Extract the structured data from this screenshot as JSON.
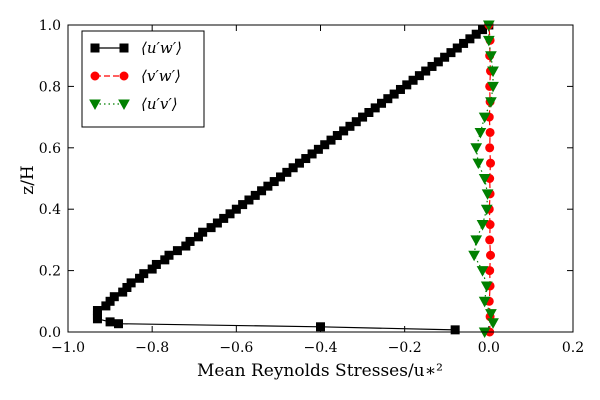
{
  "chart_data": {
    "type": "line",
    "xlabel": "Mean Reynolds Stresses/u∗²",
    "ylabel": "z/H",
    "xlim": [
      -1.0,
      0.2
    ],
    "ylim": [
      0.0,
      1.0
    ],
    "xticks": [
      "−1.0",
      "−0.8",
      "−0.6",
      "−0.4",
      "−0.2",
      "0.0",
      "0.2"
    ],
    "yticks": [
      "0.0",
      "0.2",
      "0.4",
      "0.6",
      "0.8",
      "1.0"
    ],
    "grid": false,
    "legend_position": "top-left",
    "series": [
      {
        "name": "⟨u′w′⟩",
        "color": "#000000",
        "marker": "square",
        "linestyle": "solid",
        "points": [
          [
            -0.08,
            0.007
          ],
          [
            -0.4,
            0.017
          ],
          [
            -0.88,
            0.027
          ],
          [
            -0.9,
            0.033
          ],
          [
            -0.93,
            0.043
          ],
          [
            -0.93,
            0.055
          ],
          [
            -0.93,
            0.07
          ],
          [
            -0.91,
            0.085
          ],
          [
            -0.9,
            0.1
          ],
          [
            -0.89,
            0.115
          ],
          [
            -0.87,
            0.13
          ],
          [
            -0.86,
            0.145
          ],
          [
            -0.85,
            0.16
          ],
          [
            -0.83,
            0.175
          ],
          [
            -0.82,
            0.19
          ],
          [
            -0.8,
            0.205
          ],
          [
            -0.79,
            0.22
          ],
          [
            -0.77,
            0.235
          ],
          [
            -0.76,
            0.25
          ],
          [
            -0.74,
            0.265
          ],
          [
            -0.72,
            0.28
          ],
          [
            -0.71,
            0.295
          ],
          [
            -0.69,
            0.31
          ],
          [
            -0.68,
            0.325
          ],
          [
            -0.66,
            0.34
          ],
          [
            -0.645,
            0.355
          ],
          [
            -0.63,
            0.37
          ],
          [
            -0.615,
            0.385
          ],
          [
            -0.6,
            0.4
          ],
          [
            -0.585,
            0.415
          ],
          [
            -0.57,
            0.43
          ],
          [
            -0.555,
            0.445
          ],
          [
            -0.54,
            0.46
          ],
          [
            -0.525,
            0.475
          ],
          [
            -0.51,
            0.49
          ],
          [
            -0.495,
            0.505
          ],
          [
            -0.48,
            0.52
          ],
          [
            -0.465,
            0.535
          ],
          [
            -0.45,
            0.55
          ],
          [
            -0.435,
            0.565
          ],
          [
            -0.42,
            0.58
          ],
          [
            -0.405,
            0.595
          ],
          [
            -0.39,
            0.61
          ],
          [
            -0.375,
            0.625
          ],
          [
            -0.36,
            0.64
          ],
          [
            -0.345,
            0.655
          ],
          [
            -0.33,
            0.67
          ],
          [
            -0.315,
            0.685
          ],
          [
            -0.3,
            0.7
          ],
          [
            -0.285,
            0.715
          ],
          [
            -0.27,
            0.73
          ],
          [
            -0.255,
            0.745
          ],
          [
            -0.24,
            0.76
          ],
          [
            -0.225,
            0.775
          ],
          [
            -0.21,
            0.79
          ],
          [
            -0.195,
            0.805
          ],
          [
            -0.18,
            0.82
          ],
          [
            -0.165,
            0.835
          ],
          [
            -0.15,
            0.85
          ],
          [
            -0.135,
            0.865
          ],
          [
            -0.12,
            0.88
          ],
          [
            -0.105,
            0.895
          ],
          [
            -0.09,
            0.91
          ],
          [
            -0.075,
            0.925
          ],
          [
            -0.06,
            0.94
          ],
          [
            -0.045,
            0.955
          ],
          [
            -0.03,
            0.97
          ],
          [
            -0.015,
            0.985
          ],
          [
            0.0,
            1.0
          ]
        ]
      },
      {
        "name": "⟨v′w′⟩",
        "color": "#ff0000",
        "marker": "circle",
        "linestyle": "dashed",
        "points": [
          [
            0.002,
            0.0
          ],
          [
            0.003,
            0.05
          ],
          [
            0.001,
            0.1
          ],
          [
            0.003,
            0.15
          ],
          [
            0.002,
            0.2
          ],
          [
            0.004,
            0.25
          ],
          [
            0.002,
            0.3
          ],
          [
            0.003,
            0.35
          ],
          [
            0.001,
            0.4
          ],
          [
            0.003,
            0.45
          ],
          [
            0.002,
            0.5
          ],
          [
            0.004,
            0.55
          ],
          [
            0.002,
            0.6
          ],
          [
            0.003,
            0.65
          ],
          [
            0.001,
            0.7
          ],
          [
            0.003,
            0.75
          ],
          [
            0.002,
            0.8
          ],
          [
            0.004,
            0.85
          ],
          [
            0.002,
            0.9
          ],
          [
            0.003,
            0.95
          ],
          [
            0.0,
            1.0
          ]
        ]
      },
      {
        "name": "⟨u′v′⟩",
        "color": "#008000",
        "marker": "triangle-down",
        "linestyle": "dotted",
        "points": [
          [
            -0.01,
            0.0
          ],
          [
            0.01,
            0.03
          ],
          [
            0.005,
            0.06
          ],
          [
            -0.01,
            0.1
          ],
          [
            -0.005,
            0.15
          ],
          [
            -0.015,
            0.2
          ],
          [
            -0.035,
            0.25
          ],
          [
            -0.03,
            0.3
          ],
          [
            -0.015,
            0.35
          ],
          [
            -0.005,
            0.4
          ],
          [
            -0.003,
            0.45
          ],
          [
            -0.01,
            0.5
          ],
          [
            -0.025,
            0.55
          ],
          [
            -0.03,
            0.6
          ],
          [
            -0.02,
            0.65
          ],
          [
            -0.01,
            0.7
          ],
          [
            0.005,
            0.75
          ],
          [
            0.01,
            0.8
          ],
          [
            0.01,
            0.85
          ],
          [
            0.005,
            0.9
          ],
          [
            0.0,
            0.95
          ],
          [
            0.0,
            1.0
          ]
        ]
      }
    ]
  }
}
